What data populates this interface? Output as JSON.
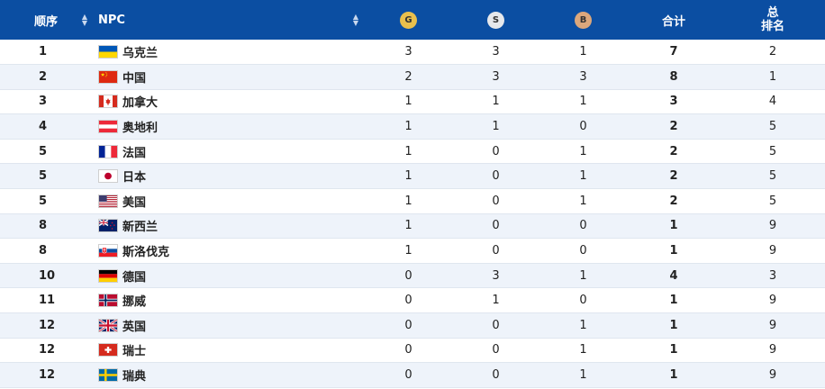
{
  "header": {
    "rank": "顺序",
    "npc": "NPC",
    "gold": "G",
    "silver": "S",
    "bronze": "B",
    "total": "合计",
    "overall_line1": "总",
    "overall_line2": "排名"
  },
  "rows": [
    {
      "rank": "1",
      "flag": "ukraine",
      "name": "乌克兰",
      "g": "3",
      "s": "3",
      "b": "1",
      "total": "7",
      "overall": "2"
    },
    {
      "rank": "2",
      "flag": "china",
      "name": "中国",
      "g": "2",
      "s": "3",
      "b": "3",
      "total": "8",
      "overall": "1"
    },
    {
      "rank": "3",
      "flag": "canada",
      "name": "加拿大",
      "g": "1",
      "s": "1",
      "b": "1",
      "total": "3",
      "overall": "4"
    },
    {
      "rank": "4",
      "flag": "austria",
      "name": "奥地利",
      "g": "1",
      "s": "1",
      "b": "0",
      "total": "2",
      "overall": "5"
    },
    {
      "rank": "5",
      "flag": "france",
      "name": "法国",
      "g": "1",
      "s": "0",
      "b": "1",
      "total": "2",
      "overall": "5"
    },
    {
      "rank": "5",
      "flag": "japan",
      "name": "日本",
      "g": "1",
      "s": "0",
      "b": "1",
      "total": "2",
      "overall": "5"
    },
    {
      "rank": "5",
      "flag": "usa",
      "name": "美国",
      "g": "1",
      "s": "0",
      "b": "1",
      "total": "2",
      "overall": "5"
    },
    {
      "rank": "8",
      "flag": "new-zealand",
      "name": "新西兰",
      "g": "1",
      "s": "0",
      "b": "0",
      "total": "1",
      "overall": "9"
    },
    {
      "rank": "8",
      "flag": "slovakia",
      "name": "斯洛伐克",
      "g": "1",
      "s": "0",
      "b": "0",
      "total": "1",
      "overall": "9"
    },
    {
      "rank": "10",
      "flag": "germany",
      "name": "德国",
      "g": "0",
      "s": "3",
      "b": "1",
      "total": "4",
      "overall": "3"
    },
    {
      "rank": "11",
      "flag": "norway",
      "name": "挪威",
      "g": "0",
      "s": "1",
      "b": "0",
      "total": "1",
      "overall": "9"
    },
    {
      "rank": "12",
      "flag": "uk",
      "name": "英国",
      "g": "0",
      "s": "0",
      "b": "1",
      "total": "1",
      "overall": "9"
    },
    {
      "rank": "12",
      "flag": "switzerland",
      "name": "瑞士",
      "g": "0",
      "s": "0",
      "b": "1",
      "total": "1",
      "overall": "9"
    },
    {
      "rank": "12",
      "flag": "sweden",
      "name": "瑞典",
      "g": "0",
      "s": "0",
      "b": "1",
      "total": "1",
      "overall": "9"
    }
  ]
}
